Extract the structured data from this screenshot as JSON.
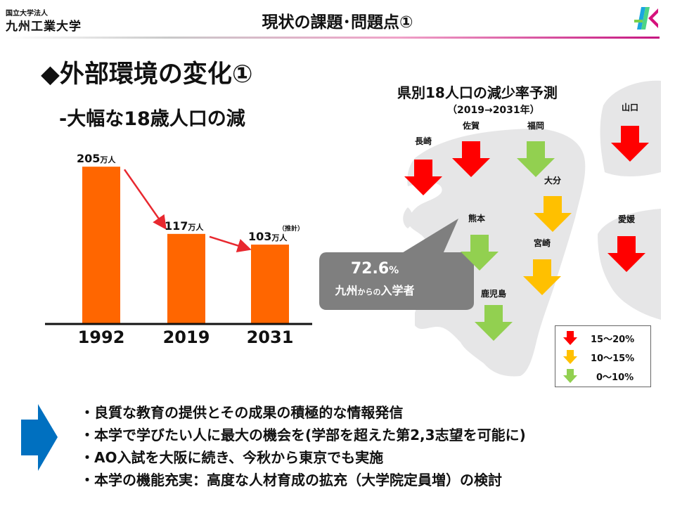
{
  "header": {
    "university_small": "国立大学法人",
    "university_name": "九州工業大学",
    "title": "現状の課題･問題点①"
  },
  "heading": "◆外部環境の変化①",
  "subheading": "-大幅な18歳人口の減",
  "chart_data": {
    "type": "bar",
    "categories": [
      "1992",
      "2019",
      "2031"
    ],
    "values": [
      205,
      117,
      103
    ],
    "value_labels": [
      "205",
      "117",
      "103"
    ],
    "unit_label": "万人",
    "annotations": [
      {
        "category": "2031",
        "text": "（推計）"
      }
    ],
    "bar_color": "#ff6600",
    "trend_arrow_color": "#e8282f",
    "ylim": [
      0,
      230
    ]
  },
  "map": {
    "title": "県別18人口の減少率予測",
    "subtitle": "（2019→2031年）",
    "prefectures": [
      {
        "name": "長崎",
        "level": "red"
      },
      {
        "name": "佐賀",
        "level": "red"
      },
      {
        "name": "福岡",
        "level": "green"
      },
      {
        "name": "山口",
        "level": "red"
      },
      {
        "name": "大分",
        "level": "orange"
      },
      {
        "name": "熊本",
        "level": "green"
      },
      {
        "name": "愛媛",
        "level": "red"
      },
      {
        "name": "宮崎",
        "level": "orange"
      },
      {
        "name": "鹿児島",
        "level": "green"
      }
    ],
    "colors": {
      "red": "#ff0000",
      "orange": "#ffc000",
      "green": "#92d050"
    },
    "legend": [
      {
        "label": "15～20%",
        "level": "red"
      },
      {
        "label": "10～15%",
        "level": "orange"
      },
      {
        "label": "0～10%",
        "level": "green"
      }
    ]
  },
  "callout": {
    "percent": "72.6",
    "percent_unit": "%",
    "line_part1": "九州",
    "line_part2": "からの",
    "line_part3": "入学者"
  },
  "bullets": [
    "・良質な教育の提供とその成果の積極的な情報発信",
    "・本学で学びたい人に最大の機会を(学部を超えた第2,3志望を可能に)",
    "・AO入試を大阪に続き、今秋から東京でも実施",
    "・本学の機能充実：高度な人材育成の拡充（大学院定員増）の検討"
  ]
}
